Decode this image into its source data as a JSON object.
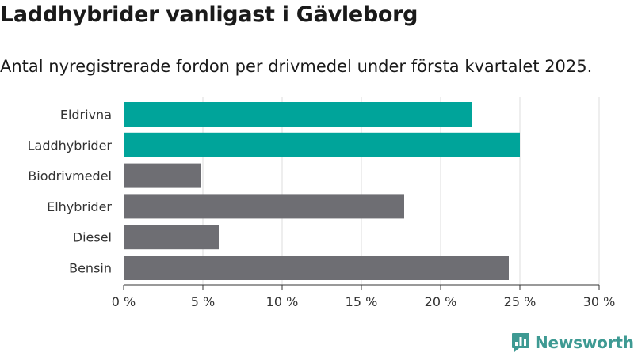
{
  "header": {
    "title": "Laddhybrider vanligast i Gävleborg",
    "subtitle": "Antal nyregistrerade fordon per drivmedel under första kvartalet 2025."
  },
  "brand": {
    "name": "Newsworthy",
    "icon": "newsworthy-logo-icon",
    "color": "#3e9a93"
  },
  "colors": {
    "highlight": "#00a49a",
    "default": "#6e6e73",
    "grid": "#dddddd"
  },
  "chart_data": {
    "type": "bar",
    "orientation": "horizontal",
    "categories": [
      "Eldrivna",
      "Laddhybrider",
      "Biodrivmedel",
      "Elhybrider",
      "Diesel",
      "Bensin"
    ],
    "values": [
      22.0,
      25.0,
      4.9,
      17.7,
      6.0,
      24.3
    ],
    "highlighted": [
      true,
      true,
      false,
      false,
      false,
      false
    ],
    "xlim": [
      0,
      30
    ],
    "xticks": [
      0,
      5,
      10,
      15,
      20,
      25,
      30
    ],
    "tick_labels": [
      "0 %",
      "5 %",
      "10 %",
      "15 %",
      "20 %",
      "25 %",
      "30 %"
    ],
    "grid": true,
    "legend": "none"
  }
}
